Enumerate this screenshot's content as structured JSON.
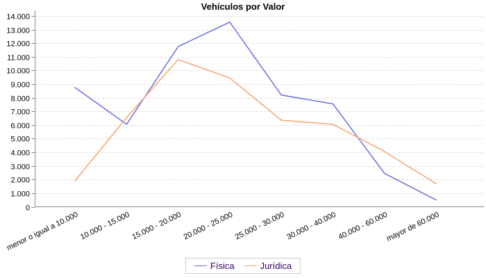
{
  "title": "Vehículos por Valor",
  "colors": {
    "background": "#FFFFFF",
    "grid": "#D9D9D9",
    "axis": "#888888",
    "tick_text": "#000000",
    "legend_text": "#330066",
    "legend_border": "#CCCCCC",
    "fisica_line": "#6E6EE2",
    "juridica_line": "#F4A46E"
  },
  "legend": {
    "items": [
      {
        "label": "Física"
      },
      {
        "label": "Jurídica"
      }
    ]
  },
  "chart_data": {
    "type": "line",
    "title": "Vehículos por Valor",
    "categories": [
      "menor o igual a 10.000",
      "10.000 - 15.000",
      "15.000 - 20.000",
      "20.000 - 25.000",
      "25.000 - 30.000",
      "30.000 - 40.000",
      "40.000 - 60.000",
      "mayor de 60.000"
    ],
    "series": [
      {
        "name": "Física",
        "color": "#6E6EE2",
        "values": [
          8750,
          6050,
          11750,
          13550,
          8200,
          7550,
          2450,
          500
        ]
      },
      {
        "name": "Jurídica",
        "color": "#F4A46E",
        "values": [
          1900,
          6550,
          10800,
          9450,
          6350,
          6050,
          4050,
          1700
        ]
      }
    ],
    "xlabel": "",
    "ylabel": "",
    "ylim": [
      0,
      14000
    ],
    "ytick_step": 1000,
    "ytick_labels": [
      "0",
      "1.000",
      "2.000",
      "3.000",
      "4.000",
      "5.000",
      "6.000",
      "7.000",
      "8.000",
      "9.000",
      "10.000",
      "11.000",
      "12.000",
      "13.000",
      "14.000"
    ],
    "grid": "horizontal-dashed",
    "legend_position": "bottom",
    "x_label_rotation_deg": -26
  }
}
